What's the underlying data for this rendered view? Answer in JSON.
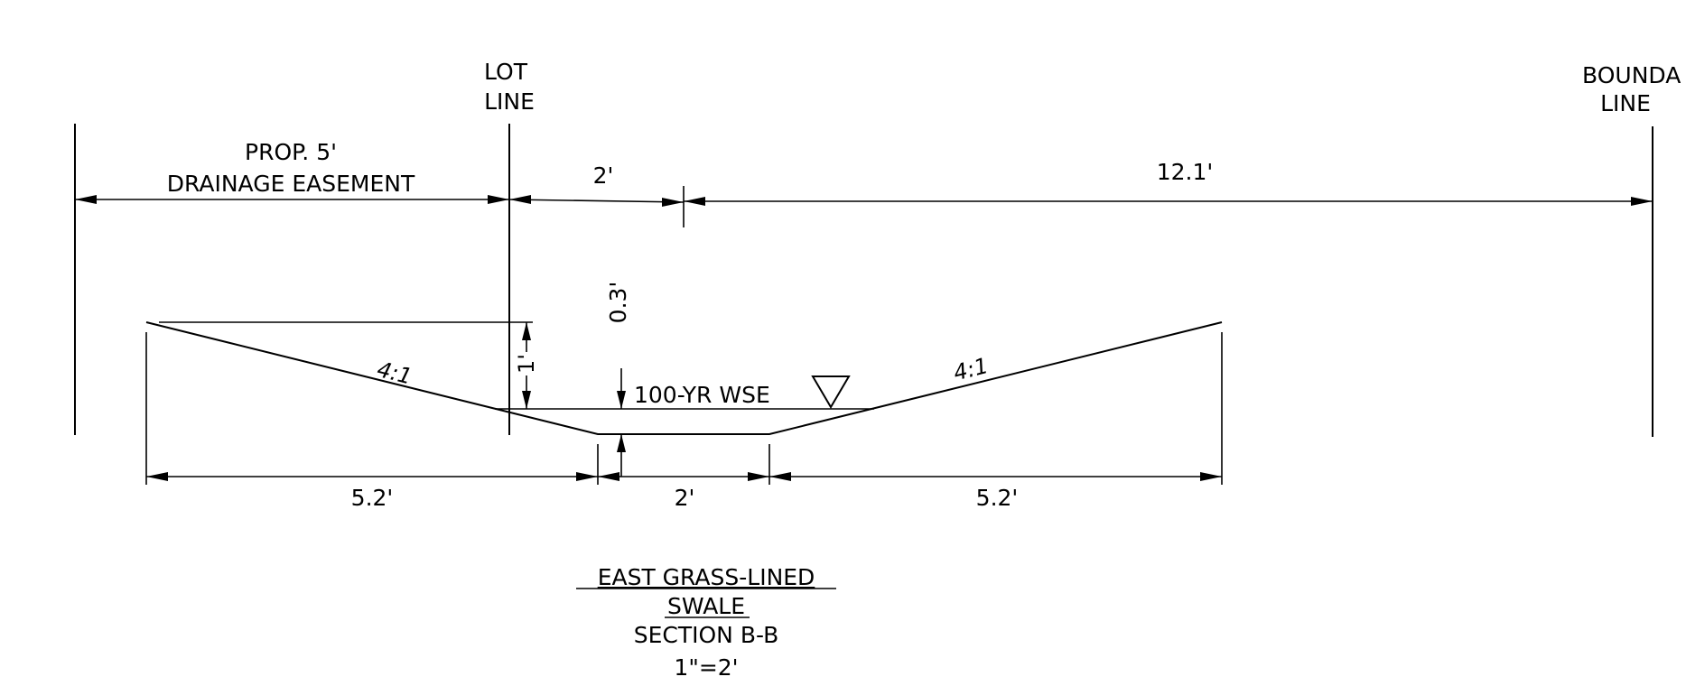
{
  "labels": {
    "lot_line_1": "LOT",
    "lot_line_2": "LINE",
    "boundary_line_1": "BOUNDA",
    "boundary_line_2": "LINE",
    "easement_1": "PROP. 5'",
    "easement_2": "DRAINAGE EASEMENT",
    "dim_top_2ft": "2'",
    "dim_top_12ft": "12.1'",
    "dim_depth_03": "0.3'",
    "dim_depth_1": "1'",
    "slope_left": "4:1",
    "slope_right": "4:1",
    "wse": "100-YR WSE",
    "dim_bottom_left": "5.2'",
    "dim_bottom_mid": "2'",
    "dim_bottom_right": "5.2'",
    "title_1": "EAST GRASS-LINED",
    "title_2": "SWALE",
    "title_3": "SECTION B-B",
    "title_4": "1\"=2'"
  }
}
